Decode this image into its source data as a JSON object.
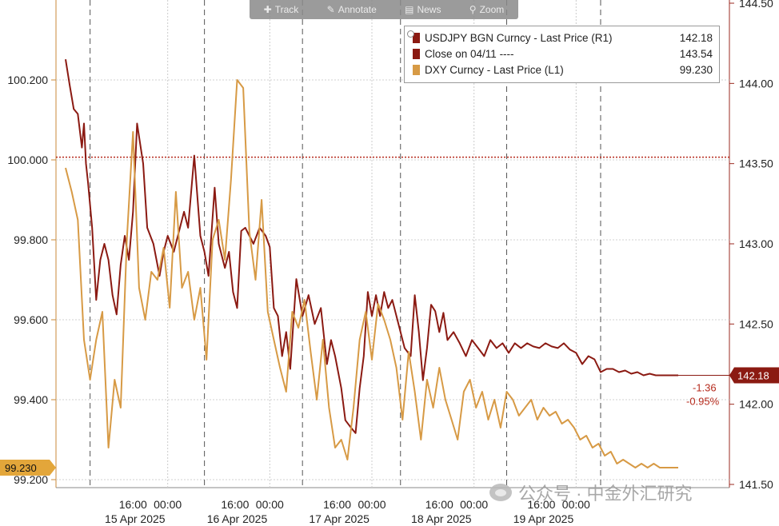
{
  "toolbar": {
    "items": [
      {
        "label": "Track",
        "icon": "crosshair-icon"
      },
      {
        "label": "Annotate",
        "icon": "pencil-icon"
      },
      {
        "label": "News",
        "icon": "news-icon"
      },
      {
        "label": "Zoom",
        "icon": "magnifier-icon"
      }
    ]
  },
  "legend": [
    {
      "name": "USDJPY BGN Curncy - Last Price (R1)",
      "value": "142.18",
      "color": "#8b1a12"
    },
    {
      "name": "Close on 04/11 ----",
      "value": "143.54",
      "color": "#8b1a12"
    },
    {
      "name": "DXY Curncy - Last Price (L1)",
      "value": "99.230",
      "color": "#d79a45"
    }
  ],
  "badges": {
    "dxy_last": "99.230",
    "usdjpy_last": "142.18",
    "usdjpy_change": "-1.36",
    "usdjpy_change_pct": "-0.95%"
  },
  "watermark": "公众号 · 中金外汇研究",
  "colors": {
    "usdjpy": "#8b1a12",
    "dxy": "#d79a45",
    "close_line": "#b52a1c",
    "right_badge": "#8b1a12",
    "left_badge": "#e3a63a"
  },
  "chart_data": {
    "type": "line",
    "x_tick_labels": [
      "16:00",
      "00:00",
      "16:00",
      "00:00",
      "16:00",
      "00:00",
      "16:00",
      "00:00",
      "16:00",
      "00:00"
    ],
    "x_date_labels": [
      "15 Apr 2025",
      "16 Apr 2025",
      "17 Apr 2025",
      "18 Apr 2025",
      "19 Apr 2025"
    ],
    "left_axis": {
      "ticks": [
        "100.200",
        "100.000",
        "99.800",
        "99.600",
        "99.400",
        "99.200"
      ],
      "range": [
        99.18,
        100.4
      ]
    },
    "right_axis": {
      "ticks": [
        "144.50",
        "144.00",
        "143.50",
        "143.00",
        "142.50",
        "142.00",
        "141.50"
      ],
      "range": [
        141.48,
        144.52
      ]
    },
    "close_reference": 143.54,
    "grid": true,
    "legend_position": "top-right",
    "series": [
      {
        "name": "USDJPY BGN Curncy - Last Price (R1)",
        "axis": "right",
        "x": [
          0.0,
          0.2,
          0.4,
          0.6,
          0.8,
          0.9,
          1.0,
          1.1,
          1.3,
          1.5,
          1.7,
          1.9,
          2.1,
          2.3,
          2.5,
          2.7,
          2.9,
          3.1,
          3.3,
          3.5,
          3.8,
          4.0,
          4.3,
          4.6,
          4.8,
          5.0,
          5.3,
          5.5,
          5.8,
          6.0,
          6.3,
          6.6,
          6.8,
          7.0,
          7.3,
          7.5,
          7.8,
          8.0,
          8.2,
          8.4,
          8.6,
          8.8,
          9.0,
          9.2,
          9.5,
          9.8,
          10.0,
          10.2,
          10.4,
          10.6,
          10.8,
          11.0,
          11.3,
          11.6,
          11.9,
          12.2,
          12.5,
          12.8,
          13.0,
          13.2,
          13.5,
          13.7,
          14.0,
          14.2,
          14.4,
          14.6,
          14.8,
          15.0,
          15.2,
          15.4,
          15.6,
          15.8,
          16.0,
          16.3,
          16.6,
          16.9,
          17.1,
          17.3,
          17.5,
          17.7,
          17.9,
          18.1,
          18.3,
          18.5,
          18.7,
          19.0,
          19.3,
          19.6,
          19.9,
          20.2,
          20.5,
          20.8,
          21.1,
          21.4,
          21.7,
          22.0,
          22.3,
          22.6,
          22.9,
          23.2,
          23.5,
          23.8,
          24.1,
          24.4,
          24.7,
          25.0,
          25.3,
          25.6,
          25.9,
          26.2,
          26.5,
          26.8,
          27.1,
          27.4,
          27.7,
          28.0,
          28.3,
          28.6,
          28.9,
          29.2,
          29.5,
          29.8,
          30.0
        ],
        "y": [
          144.15,
          143.99,
          143.84,
          143.81,
          143.6,
          143.75,
          143.5,
          143.38,
          143.1,
          142.65,
          142.9,
          143.0,
          142.9,
          142.68,
          142.56,
          142.87,
          143.05,
          142.9,
          143.2,
          143.75,
          143.5,
          143.1,
          143.0,
          142.8,
          142.95,
          143.05,
          142.95,
          143.05,
          143.2,
          143.1,
          143.55,
          143.05,
          142.95,
          142.8,
          143.35,
          143.0,
          142.85,
          142.95,
          142.7,
          142.6,
          143.08,
          143.1,
          143.05,
          143.0,
          143.1,
          143.05,
          142.98,
          142.6,
          142.55,
          142.3,
          142.45,
          142.22,
          142.78,
          142.55,
          142.68,
          142.5,
          142.6,
          142.25,
          142.4,
          142.3,
          142.1,
          141.9,
          141.85,
          141.82,
          142.1,
          142.3,
          142.7,
          142.55,
          142.68,
          142.55,
          142.7,
          142.6,
          142.65,
          142.5,
          142.35,
          142.3,
          142.68,
          142.45,
          142.15,
          142.35,
          142.62,
          142.58,
          142.45,
          142.57,
          142.4,
          142.45,
          142.38,
          142.3,
          142.4,
          142.35,
          142.3,
          142.4,
          142.35,
          142.38,
          142.32,
          142.38,
          142.35,
          142.38,
          142.36,
          142.35,
          142.38,
          142.36,
          142.35,
          142.38,
          142.34,
          142.32,
          142.25,
          142.3,
          142.28,
          142.2,
          142.22,
          142.22,
          142.2,
          142.21,
          142.19,
          142.2,
          142.18,
          142.19,
          142.18,
          142.18,
          142.18,
          142.18,
          142.18
        ]
      },
      {
        "name": "DXY Curncy - Last Price (L1)",
        "axis": "left",
        "x": [
          0.0,
          0.3,
          0.6,
          0.9,
          1.2,
          1.5,
          1.8,
          2.1,
          2.4,
          2.7,
          3.0,
          3.3,
          3.6,
          3.9,
          4.2,
          4.5,
          4.8,
          5.1,
          5.4,
          5.7,
          6.0,
          6.3,
          6.6,
          6.9,
          7.2,
          7.5,
          7.8,
          8.1,
          8.4,
          8.7,
          9.0,
          9.3,
          9.6,
          9.9,
          10.2,
          10.5,
          10.8,
          11.1,
          11.4,
          11.7,
          12.0,
          12.3,
          12.6,
          12.9,
          13.2,
          13.5,
          13.8,
          14.1,
          14.4,
          14.7,
          15.0,
          15.3,
          15.6,
          15.9,
          16.2,
          16.5,
          16.8,
          17.1,
          17.4,
          17.7,
          18.0,
          18.3,
          18.6,
          18.9,
          19.2,
          19.5,
          19.8,
          20.1,
          20.4,
          20.7,
          21.0,
          21.3,
          21.6,
          21.9,
          22.2,
          22.5,
          22.8,
          23.1,
          23.4,
          23.7,
          24.0,
          24.3,
          24.6,
          24.9,
          25.2,
          25.5,
          25.8,
          26.1,
          26.4,
          26.7,
          27.0,
          27.3,
          27.6,
          27.9,
          28.2,
          28.5,
          28.8,
          29.1,
          29.4,
          29.7,
          30.0
        ],
        "y": [
          99.98,
          99.92,
          99.85,
          99.55,
          99.45,
          99.55,
          99.62,
          99.28,
          99.45,
          99.38,
          99.8,
          100.07,
          99.68,
          99.6,
          99.72,
          99.7,
          99.78,
          99.63,
          99.92,
          99.68,
          99.72,
          99.6,
          99.68,
          99.5,
          99.8,
          99.85,
          99.75,
          99.95,
          100.2,
          100.18,
          99.82,
          99.7,
          99.9,
          99.62,
          99.55,
          99.48,
          99.42,
          99.62,
          99.58,
          99.65,
          99.52,
          99.4,
          99.55,
          99.38,
          99.28,
          99.3,
          99.25,
          99.38,
          99.55,
          99.62,
          99.5,
          99.64,
          99.6,
          99.55,
          99.48,
          99.35,
          99.52,
          99.42,
          99.3,
          99.45,
          99.38,
          99.48,
          99.4,
          99.35,
          99.3,
          99.42,
          99.45,
          99.38,
          99.42,
          99.35,
          99.4,
          99.33,
          99.42,
          99.4,
          99.36,
          99.38,
          99.4,
          99.35,
          99.38,
          99.36,
          99.37,
          99.34,
          99.35,
          99.33,
          99.3,
          99.31,
          99.28,
          99.29,
          99.26,
          99.27,
          99.24,
          99.25,
          99.24,
          99.23,
          99.24,
          99.23,
          99.24,
          99.23,
          99.23,
          99.23,
          99.23
        ]
      }
    ]
  }
}
